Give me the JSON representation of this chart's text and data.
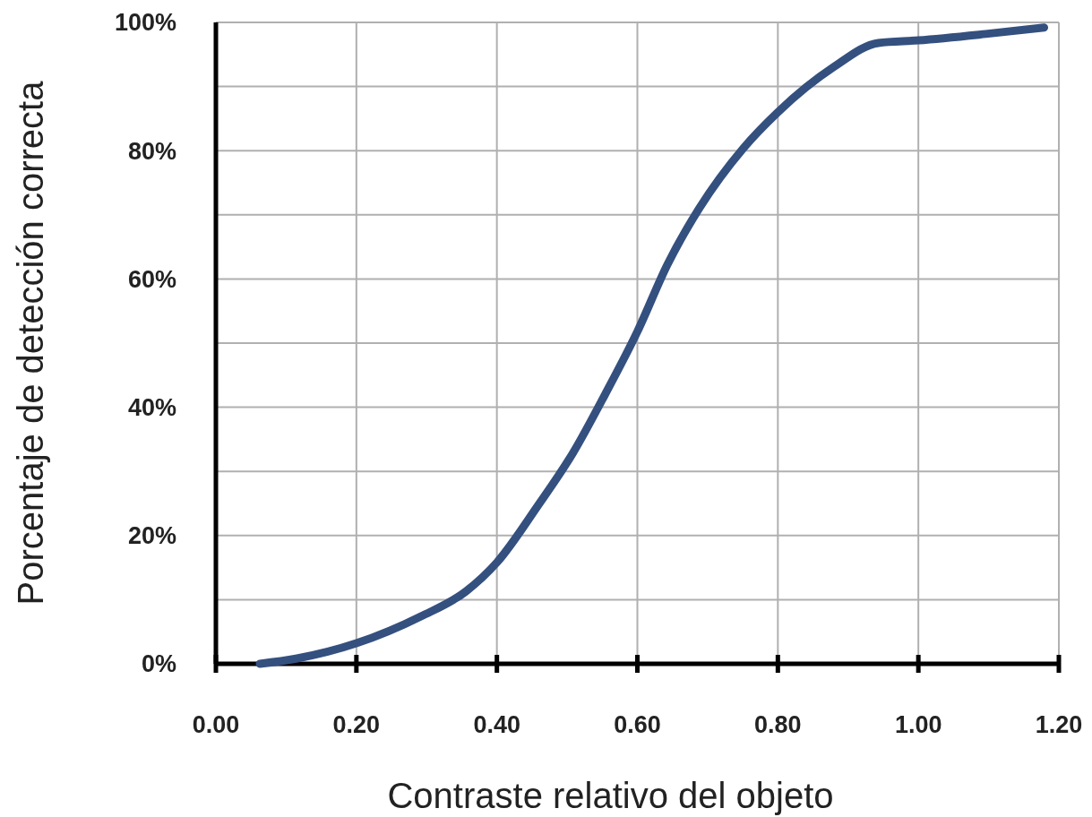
{
  "chart_data": {
    "type": "line",
    "xlabel": "Contraste relativo del objeto",
    "ylabel": "Porcentaje de detección correcta",
    "series": [
      {
        "color": "#34507f",
        "x": [
          0.0625,
          0.114,
          0.2,
          0.292,
          0.356,
          0.4,
          0.458,
          0.509,
          0.554,
          0.6,
          0.643,
          0.688,
          0.751,
          0.8,
          0.879,
          0.943,
          1.0,
          1.096,
          1.179
        ],
        "values": [
          0,
          0.8,
          3.2,
          7.4,
          11.3,
          15.8,
          24.6,
          33,
          42,
          51.8,
          62.3,
          71,
          80.4,
          86,
          93,
          96.8,
          97.2,
          98.2,
          99.2
        ]
      }
    ],
    "xlim": [
      0,
      1.2
    ],
    "ylim": [
      0,
      100
    ],
    "xticks": [
      {
        "value": 0,
        "label": "0.00"
      },
      {
        "value": 0.2,
        "label": "0.20"
      },
      {
        "value": 0.4,
        "label": "0.40"
      },
      {
        "value": 0.6,
        "label": "0.60"
      },
      {
        "value": 0.8,
        "label": "0.80"
      },
      {
        "value": 1.0,
        "label": "1.00"
      },
      {
        "value": 1.2,
        "label": "1.20"
      }
    ],
    "yticks": [
      {
        "value": 0,
        "label": "0%"
      },
      {
        "value": 10,
        "label": null
      },
      {
        "value": 20,
        "label": "20%"
      },
      {
        "value": 30,
        "label": null
      },
      {
        "value": 40,
        "label": "40%"
      },
      {
        "value": 50,
        "label": null
      },
      {
        "value": 60,
        "label": "60%"
      },
      {
        "value": 70,
        "label": null
      },
      {
        "value": 80,
        "label": "80%"
      },
      {
        "value": 90,
        "label": null
      },
      {
        "value": 100,
        "label": "100%"
      }
    ],
    "grid": true,
    "marker": "none",
    "line_style": "solid"
  }
}
